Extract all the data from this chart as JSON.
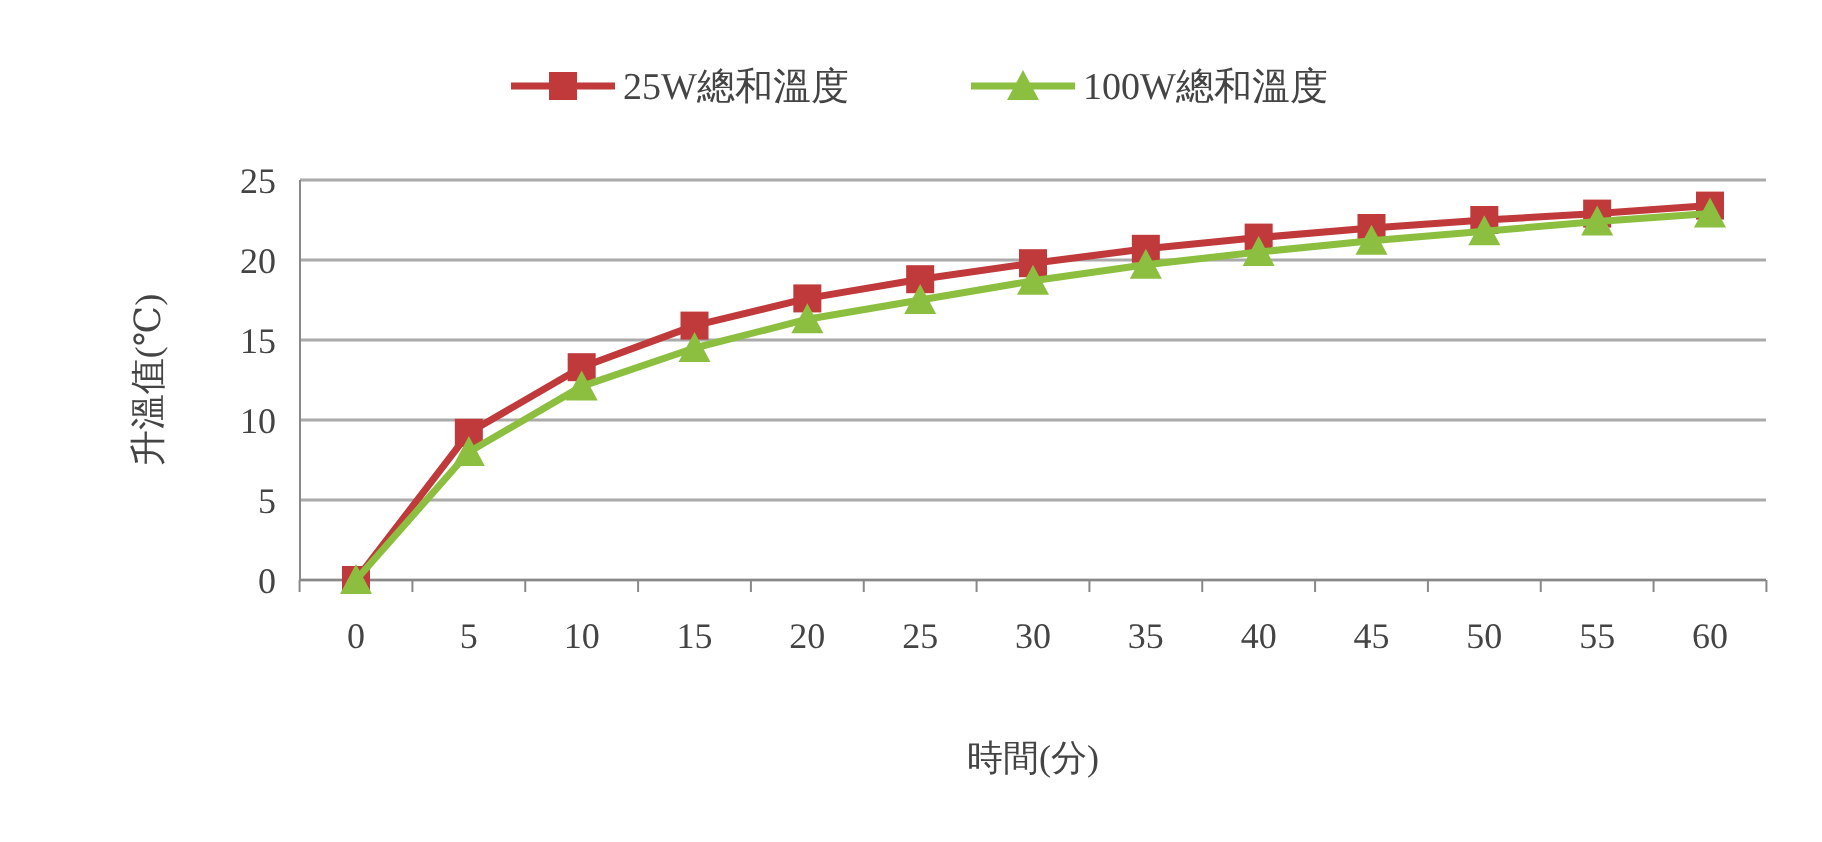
{
  "chart_data": {
    "type": "line",
    "xlabel": "時間(分)",
    "ylabel": "升溫值(℃)",
    "categories": [
      "0",
      "5",
      "10",
      "15",
      "20",
      "25",
      "30",
      "35",
      "40",
      "45",
      "50",
      "55",
      "60"
    ],
    "series": [
      {
        "name": "25W總和溫度",
        "color": "#c0393b",
        "marker": "square",
        "values": [
          0,
          9.2,
          13.3,
          15.9,
          17.6,
          18.8,
          19.8,
          20.7,
          21.4,
          22.0,
          22.5,
          22.9,
          23.4
        ]
      },
      {
        "name": "100W總和溫度",
        "color": "#8cbf3f",
        "marker": "triangle",
        "values": [
          0,
          8.0,
          12.1,
          14.5,
          16.3,
          17.5,
          18.7,
          19.7,
          20.5,
          21.2,
          21.8,
          22.4,
          22.9
        ]
      }
    ],
    "ylim": [
      0,
      25
    ],
    "yticks": [
      0,
      5,
      10,
      15,
      20,
      25
    ],
    "grid": "y",
    "legend": "top",
    "line_style": "solid"
  }
}
